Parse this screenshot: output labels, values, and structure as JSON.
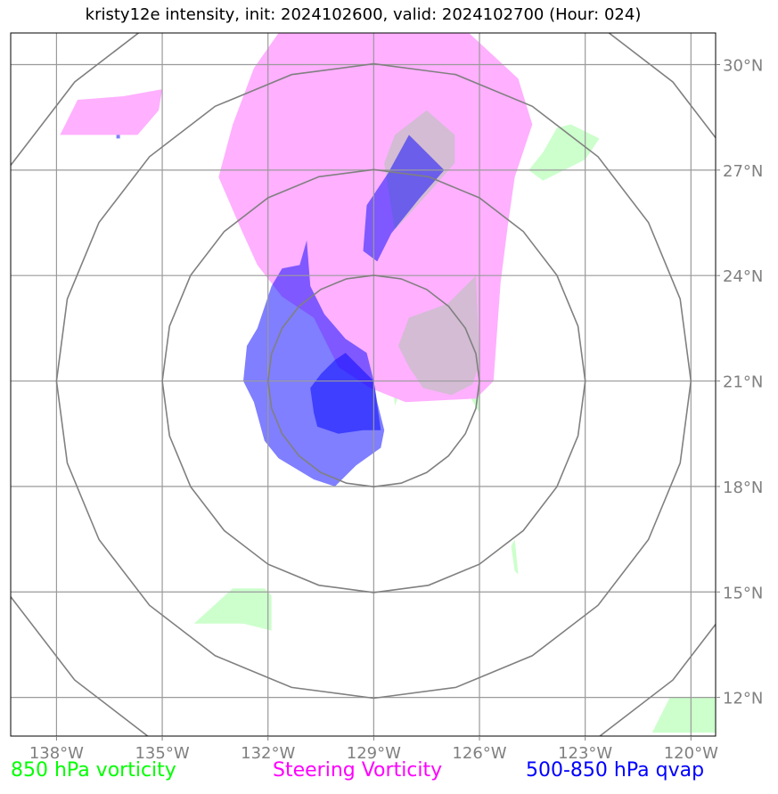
{
  "title": "kristy12e intensity, init: 2024102600, valid: 2024102700 (Hour: 024)",
  "map": {
    "lon_range": [
      -139.3,
      -119.3
    ],
    "lat_range": [
      10.9,
      30.9
    ],
    "lon_ticks": [
      {
        "lon": -138,
        "label": "138°W"
      },
      {
        "lon": -135,
        "label": "135°W"
      },
      {
        "lon": -132,
        "label": "132°W"
      },
      {
        "lon": -129,
        "label": "129°W"
      },
      {
        "lon": -126,
        "label": "126°W"
      },
      {
        "lon": -123,
        "label": "123°W"
      },
      {
        "lon": -120,
        "label": "120°W"
      }
    ],
    "lat_ticks": [
      {
        "lat": 12,
        "label": "12°N"
      },
      {
        "lat": 15,
        "label": "15°N"
      },
      {
        "lat": 18,
        "label": "18°N"
      },
      {
        "lat": 21,
        "label": "21°N"
      },
      {
        "lat": 24,
        "label": "24°N"
      },
      {
        "lat": 27,
        "label": "27°N"
      },
      {
        "lat": 30,
        "label": "30°N"
      }
    ],
    "range_rings": {
      "center": {
        "lon": -129.0,
        "lat": 21.0
      },
      "radii_deg": [
        3,
        6,
        9,
        12
      ]
    },
    "colors": {
      "vort850": "#ccffcc",
      "steering": "#ffb0ff",
      "qvap": "#0000ff",
      "ring": "#808080",
      "grid": "#9a9a9a"
    }
  },
  "fields": {
    "vort850": [
      [
        [
          -124.2,
          27.5
        ],
        [
          -123.8,
          28.2
        ],
        [
          -123.4,
          28.3
        ],
        [
          -122.6,
          27.9
        ],
        [
          -123.0,
          27.3
        ],
        [
          -124.2,
          26.7
        ],
        [
          -124.6,
          27.0
        ]
      ],
      [
        [
          -134.1,
          14.1
        ],
        [
          -132.7,
          14.1
        ],
        [
          -131.9,
          13.9
        ],
        [
          -131.9,
          14.9
        ],
        [
          -132.1,
          15.1
        ],
        [
          -133.0,
          15.1
        ]
      ],
      [
        [
          -121.1,
          11.0
        ],
        [
          -119.3,
          11.0
        ],
        [
          -119.3,
          12.0
        ],
        [
          -120.6,
          12.0
        ]
      ],
      [
        [
          -125.1,
          16.3
        ],
        [
          -125.0,
          15.6
        ],
        [
          -124.9,
          15.5
        ],
        [
          -125.0,
          16.5
        ]
      ],
      [
        [
          -126.3,
          20.6
        ],
        [
          -126.0,
          20.7
        ],
        [
          -126.0,
          20.3
        ],
        [
          -126.0,
          20.1
        ]
      ],
      [
        [
          -128.4,
          20.3
        ],
        [
          -128.2,
          20.8
        ],
        [
          -128.5,
          21.3
        ]
      ]
    ],
    "steering": [
      [
        [
          -126.3,
          30.9
        ],
        [
          -124.9,
          29.6
        ],
        [
          -124.5,
          28.3
        ],
        [
          -125.0,
          26.8
        ],
        [
          -125.2,
          25.4
        ],
        [
          -125.4,
          23.8
        ],
        [
          -125.6,
          21.0
        ],
        [
          -126.1,
          20.5
        ],
        [
          -128.1,
          20.4
        ],
        [
          -129.1,
          20.8
        ],
        [
          -130.0,
          21.4
        ],
        [
          -130.7,
          22.8
        ],
        [
          -131.6,
          23.4
        ],
        [
          -132.3,
          24.3
        ],
        [
          -132.8,
          25.4
        ],
        [
          -133.4,
          26.8
        ],
        [
          -133.0,
          28.3
        ],
        [
          -132.4,
          29.9
        ],
        [
          -131.7,
          30.9
        ]
      ],
      [
        [
          -137.9,
          28.0
        ],
        [
          -137.4,
          29.0
        ],
        [
          -136.1,
          29.1
        ],
        [
          -135.0,
          29.3
        ],
        [
          -135.1,
          28.7
        ],
        [
          -135.7,
          28.0
        ]
      ]
    ],
    "overlap": [
      [
        [
          -128.4,
          25.3
        ],
        [
          -127.4,
          26.4
        ],
        [
          -126.7,
          27.2
        ],
        [
          -126.7,
          28.0
        ],
        [
          -127.5,
          28.7
        ],
        [
          -128.4,
          28.0
        ],
        [
          -128.7,
          27.2
        ]
      ],
      [
        [
          -126.1,
          24.0
        ],
        [
          -126.9,
          23.2
        ],
        [
          -128.0,
          22.8
        ],
        [
          -128.3,
          22.0
        ],
        [
          -128.0,
          21.4
        ],
        [
          -127.6,
          20.8
        ],
        [
          -126.8,
          20.6
        ],
        [
          -126.2,
          20.9
        ],
        [
          -126.0,
          21.5
        ]
      ]
    ],
    "qvap": [
      [
        [
          -128.0,
          28.0
        ],
        [
          -127.0,
          27.0
        ],
        [
          -127.7,
          26.2
        ],
        [
          -128.5,
          25.2
        ],
        [
          -128.9,
          24.4
        ],
        [
          -129.3,
          24.7
        ],
        [
          -129.2,
          26.0
        ],
        [
          -128.6,
          26.9
        ]
      ],
      [
        [
          -130.9,
          25.0
        ],
        [
          -130.8,
          23.7
        ],
        [
          -130.4,
          22.9
        ],
        [
          -129.8,
          22.2
        ],
        [
          -129.2,
          21.8
        ],
        [
          -129.0,
          21.0
        ],
        [
          -128.9,
          20.4
        ],
        [
          -128.7,
          19.6
        ],
        [
          -128.8,
          19.1
        ],
        [
          -129.5,
          18.6
        ],
        [
          -130.1,
          18.0
        ],
        [
          -130.7,
          18.2
        ],
        [
          -131.7,
          18.8
        ],
        [
          -132.1,
          19.3
        ],
        [
          -132.4,
          20.4
        ],
        [
          -132.7,
          21.0
        ],
        [
          -132.6,
          22.0
        ],
        [
          -132.3,
          22.5
        ],
        [
          -131.9,
          23.7
        ],
        [
          -131.6,
          24.2
        ],
        [
          -131.1,
          24.3
        ]
      ],
      [
        [
          -130.5,
          21.2
        ],
        [
          -130.1,
          21.6
        ],
        [
          -129.8,
          21.8
        ],
        [
          -129.0,
          21.0
        ],
        [
          -128.8,
          19.6
        ],
        [
          -129.3,
          19.6
        ],
        [
          -130.0,
          19.5
        ],
        [
          -130.6,
          19.7
        ],
        [
          -130.7,
          20.1
        ],
        [
          -130.8,
          20.8
        ]
      ],
      [
        [
          -136.3,
          28.0
        ],
        [
          -136.2,
          28.0
        ],
        [
          -136.2,
          27.9
        ],
        [
          -136.3,
          27.9
        ]
      ]
    ]
  },
  "legend": {
    "vort850": "850 hPa vorticity",
    "steering": "Steering Vorticity",
    "qvap": "500-850 hPa qvap"
  }
}
